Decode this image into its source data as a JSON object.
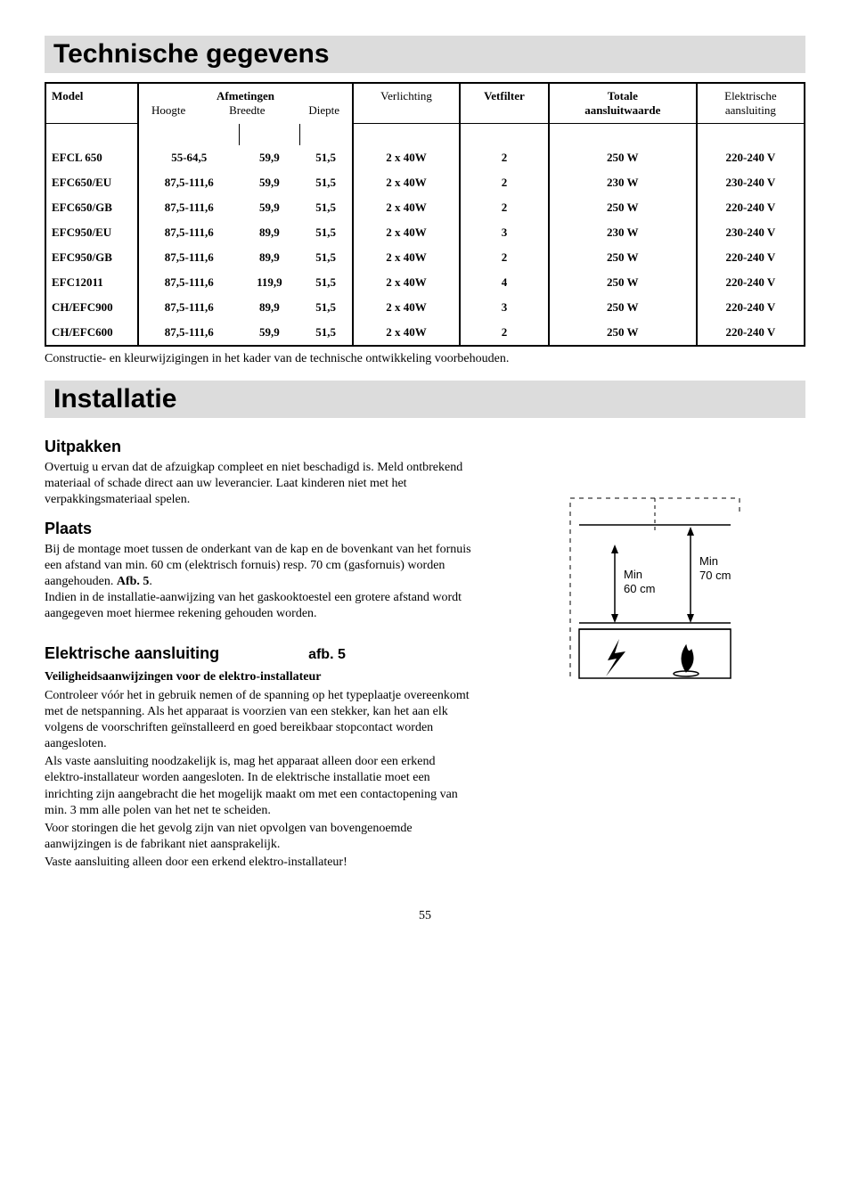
{
  "title1": "Technische gegevens",
  "table": {
    "headers": {
      "model": "Model",
      "afmetingen": "Afmetingen",
      "hoogte": "Hoogte",
      "breedte": "Breedte",
      "diepte": "Diepte",
      "verlichting": "Verlichting",
      "vetfilter": "Vetfilter",
      "totale": "Totale",
      "aansluitwaarde": "aansluitwaarde",
      "elektrische": "Elektrische",
      "aansluiting": "aansluiting"
    },
    "rows": [
      {
        "model": "EFCL 650",
        "hoogte": "55-64,5",
        "breedte": "59,9",
        "diepte": "51,5",
        "verlichting": "2 x 40W",
        "vetfilter": "2",
        "totale": "250 W",
        "elek": "220-240 V"
      },
      {
        "model": "EFC650/EU",
        "hoogte": "87,5-111,6",
        "breedte": "59,9",
        "diepte": "51,5",
        "verlichting": "2 x 40W",
        "vetfilter": "2",
        "totale": "230 W",
        "elek": "230-240 V"
      },
      {
        "model": "EFC650/GB",
        "hoogte": "87,5-111,6",
        "breedte": "59,9",
        "diepte": "51,5",
        "verlichting": "2 x 40W",
        "vetfilter": "2",
        "totale": "250 W",
        "elek": "220-240 V"
      },
      {
        "model": "EFC950/EU",
        "hoogte": "87,5-111,6",
        "breedte": "89,9",
        "diepte": "51,5",
        "verlichting": "2 x 40W",
        "vetfilter": "3",
        "totale": "230 W",
        "elek": "230-240 V"
      },
      {
        "model": "EFC950/GB",
        "hoogte": "87,5-111,6",
        "breedte": "89,9",
        "diepte": "51,5",
        "verlichting": "2 x 40W",
        "vetfilter": "2",
        "totale": "250 W",
        "elek": "220-240 V"
      },
      {
        "model": "EFC12011",
        "hoogte": "87,5-111,6",
        "breedte": "119,9",
        "diepte": "51,5",
        "verlichting": "2 x 40W",
        "vetfilter": "4",
        "totale": "250 W",
        "elek": "220-240 V"
      },
      {
        "model": "CH/EFC900",
        "hoogte": "87,5-111,6",
        "breedte": "89,9",
        "diepte": "51,5",
        "verlichting": "2 x 40W",
        "vetfilter": "3",
        "totale": "250 W",
        "elek": "220-240 V"
      },
      {
        "model": "CH/EFC600",
        "hoogte": "87,5-111,6",
        "breedte": "59,9",
        "diepte": "51,5",
        "verlichting": "2 x 40W",
        "vetfilter": "2",
        "totale": "250 W",
        "elek": "220-240 V"
      }
    ]
  },
  "caption1": "Constructie- en kleurwijzigingen in het kader van de technische ontwikkeling voorbehouden.",
  "title2": "Installatie",
  "s_uitpakken": "Uitpakken",
  "p_uitpakken": "Overtuig u ervan dat de afzuigkap compleet en niet beschadigd is. Meld ontbrekend materiaal of schade direct aan uw leverancier. Laat kinderen niet met het verpakkingsmateriaal spelen.",
  "s_plaats": "Plaats",
  "p_plaats_1": "Bij de montage moet tussen de onderkant van de kap en de bovenkant van het fornuis een afstand van min. 60 cm (elektrisch fornuis) resp. 70 cm (gasfornuis) worden aangehouden. ",
  "p_plaats_1b": "Afb. 5",
  "p_plaats_1c": ".",
  "p_plaats_2": "Indien in de installatie-aanwijzing van het gaskooktoestel een grotere afstand wordt aangegeven moet hiermee rekening gehouden worden.",
  "s_elek": "Elektrische aansluiting",
  "fig5": "afb. 5",
  "h_veil": "Veiligheidsaanwijzingen voor de elektro-installateur",
  "p_elek_1": "Controleer vóór het in gebruik nemen of de spanning op het typeplaatje overeenkomt met de netspanning. Als het apparaat is voorzien van een stekker, kan het aan elk volgens de voorschriften geïnstalleerd en goed bereikbaar stopcontact worden aangesloten.",
  "p_elek_2": "Als vaste aansluiting noodzakelijk is, mag het apparaat alleen door een erkend elektro-installateur worden aangesloten. In de elektrische installatie moet een inrichting zijn aangebracht die het mogelijk maakt om met een contactopening van min. 3 mm alle polen van het net te scheiden.",
  "p_elek_3": "Voor storingen die het gevolg zijn van niet opvolgen van bovengenoemde aanwijzingen is de fabrikant niet aansprakelijk.",
  "p_elek_4": "Vaste aansluiting alleen door een erkend elektro-installateur!",
  "diagram": {
    "min_label": "Min",
    "dist_elec": "60 cm",
    "dist_gas": "70 cm"
  },
  "page": "55"
}
